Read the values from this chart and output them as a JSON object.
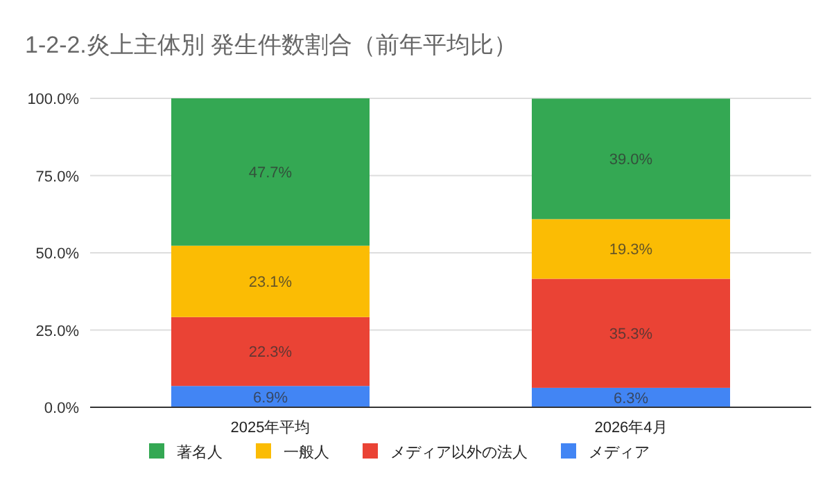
{
  "chart_data": {
    "type": "bar",
    "title": "1-2-2.炎上主体別 発生件数割合（前年平均比）",
    "categories": [
      "2025年平均",
      "2026年4月"
    ],
    "stacked": true,
    "legend": "bottom",
    "grid": "y",
    "ylim": [
      0,
      100
    ],
    "yticks": [
      {
        "value": 0,
        "label": "0.0%"
      },
      {
        "value": 25,
        "label": "25.0%"
      },
      {
        "value": 50,
        "label": "50.0%"
      },
      {
        "value": 75,
        "label": "75.0%"
      },
      {
        "value": 100,
        "label": "100.0%"
      }
    ],
    "series": [
      {
        "name": "メディア",
        "color": "#4285f4",
        "values": [
          6.9,
          6.3
        ],
        "value_labels": [
          "6.9%",
          "6.3%"
        ]
      },
      {
        "name": "メディア以外の法人",
        "color": "#ea4335",
        "values": [
          22.3,
          35.3
        ],
        "value_labels": [
          "22.3%",
          "35.3%"
        ]
      },
      {
        "name": "一般人",
        "color": "#fbbc04",
        "values": [
          23.1,
          19.3
        ],
        "value_labels": [
          "23.1%",
          "19.3%"
        ]
      },
      {
        "name": "著名人",
        "color": "#34a853",
        "values": [
          47.7,
          39.0
        ],
        "value_labels": [
          "47.7%",
          "39.0%"
        ]
      }
    ]
  }
}
